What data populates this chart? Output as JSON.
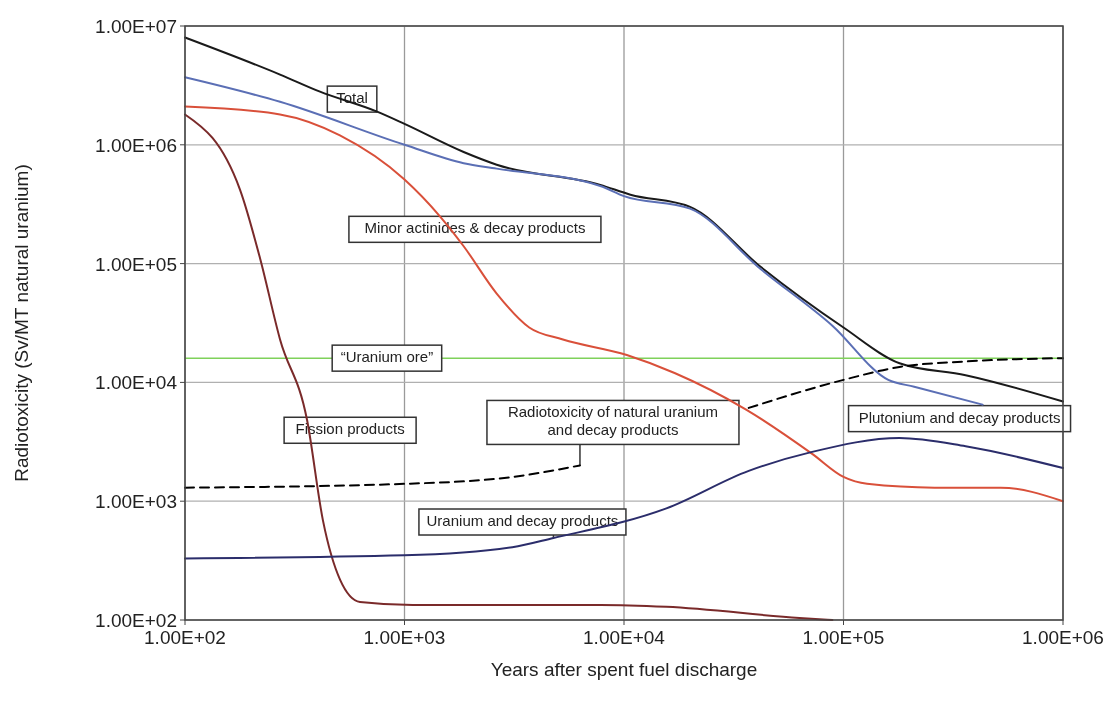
{
  "chart_data": {
    "type": "line",
    "xlabel": "Years after spent fuel discharge",
    "ylabel": "Radiotoxicity (Sv/MT natural uranium)",
    "log": "xy",
    "grid": true,
    "marker": "none",
    "xlim": [
      100,
      1000000
    ],
    "ylim": [
      100,
      10000000
    ],
    "xticks": [
      {
        "value": 100,
        "label": "1.00E+02"
      },
      {
        "value": 1000,
        "label": "1.00E+03"
      },
      {
        "value": 10000,
        "label": "1.00E+04"
      },
      {
        "value": 100000,
        "label": "1.00E+05"
      },
      {
        "value": 1000000,
        "label": "1.00E+06"
      }
    ],
    "yticks": [
      {
        "value": 100,
        "label": "1.00E+02"
      },
      {
        "value": 1000,
        "label": "1.00E+03"
      },
      {
        "value": 10000,
        "label": "1.00E+04"
      },
      {
        "value": 100000,
        "label": "1.00E+05"
      },
      {
        "value": 1000000,
        "label": "1.00E+06"
      },
      {
        "value": 10000000,
        "label": "1.00E+07"
      }
    ],
    "series": [
      {
        "color": "#1a1a1a",
        "line_style": "solid",
        "x": [
          100,
          271,
          412,
          750,
          1000,
          1860,
          2630,
          7800,
          10700,
          20000,
          41900,
          100000,
          180000,
          360000,
          1000000
        ],
        "values": [
          8000000,
          3900000,
          2800000,
          1900000,
          1500000,
          870000,
          680000,
          460000,
          380000,
          300000,
          94000,
          29000,
          14500,
          11500,
          6900
        ]
      },
      {
        "color": "#5b6fb5",
        "line_style": "solid",
        "x": [
          100,
          271,
          1000,
          1860,
          2630,
          7800,
          10000,
          20000,
          41900,
          89000,
          160000,
          210000,
          430000
        ],
        "values": [
          3700000,
          2300000,
          1000000,
          700000,
          630000,
          450000,
          370000,
          290000,
          90000,
          30000,
          10500,
          9200,
          6500
        ]
      },
      {
        "color": "#d9503a",
        "line_style": "solid",
        "x": [
          100,
          271,
          508,
          1000,
          1450,
          1860,
          2630,
          3700,
          5270,
          10300,
          17000,
          36000,
          72000,
          100000,
          128000,
          260000,
          520000,
          1000000
        ],
        "values": [
          2100000,
          1800000,
          1200000,
          510000,
          250000,
          140000,
          56000,
          29000,
          23000,
          17000,
          12000,
          5900,
          2500,
          1600,
          1400,
          1300,
          1300,
          1000
        ]
      },
      {
        "color": "#7a2a2a",
        "line_style": "solid",
        "x": [
          100,
          178,
          220,
          271,
          360,
          425,
          509,
          627,
          1090,
          7800,
          15600,
          63000,
          89000
        ],
        "values": [
          1800000,
          420000,
          110000,
          23000,
          4800,
          690,
          218,
          142,
          134,
          134,
          129,
          104,
          100
        ]
      },
      {
        "color": "#2b2d6b",
        "line_style": "solid",
        "x": [
          100,
          1000,
          3100,
          4770,
          15600,
          37000,
          72000,
          180000,
          360000,
          1000000
        ],
        "values": [
          330,
          350,
          410,
          490,
          870,
          1800,
          2600,
          3400,
          2900,
          1900
        ]
      },
      {
        "color": "#000000",
        "line_style": "dashed",
        "x": [
          100,
          1000,
          3100,
          6300,
          20000,
          37000,
          100000,
          180000,
          360000,
          1000000
        ],
        "values": [
          1300,
          1400,
          1600,
          2000,
          null,
          6100,
          10500,
          13500,
          15000,
          16000
        ]
      }
    ],
    "ref_lines": [
      {
        "axis": "y",
        "value": 16000,
        "label": "“Uranium ore”",
        "color": "#7fd15a",
        "line_style": "solid"
      }
    ],
    "annotations": [
      {
        "text": "Total",
        "x": 577,
        "y": 2200000
      },
      {
        "text": "Minor actinides & decay products",
        "x": 1450,
        "y": 250000
      },
      {
        "text": "Fission products",
        "x": 360,
        "y": 4800
      },
      {
        "text": "Radiotoxicity of natural uranium\nand decay products",
        "x": 6300,
        "y": 2000
      },
      {
        "text": "Uranium and decay products",
        "x": 4770,
        "y": 490
      },
      {
        "text": "Plutonium and decay products",
        "x": 430000,
        "y": 6500
      }
    ]
  }
}
